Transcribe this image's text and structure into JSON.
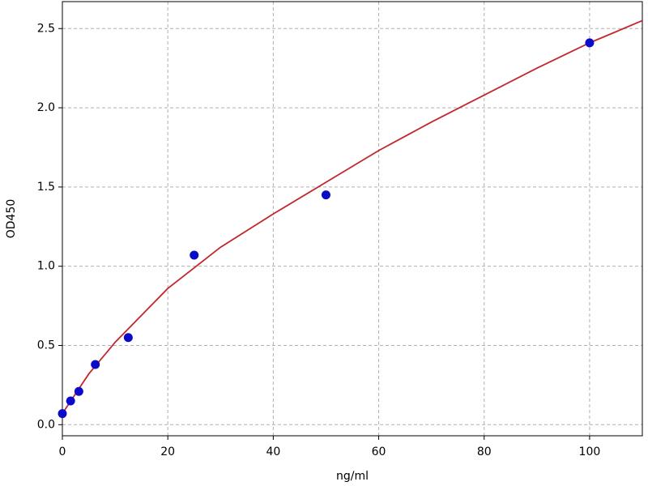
{
  "chart_data": {
    "type": "scatter",
    "xlabel": "ng/ml",
    "ylabel": "OD450",
    "xlim": [
      0,
      110
    ],
    "ylim": [
      -0.07,
      2.67
    ],
    "xticks": [
      0,
      20,
      40,
      60,
      80,
      100
    ],
    "yticks": [
      {
        "value": 0,
        "label": "0.0"
      },
      0.5,
      {
        "value": 1,
        "label": "1.0"
      },
      1.5,
      {
        "value": 2,
        "label": "2.0"
      },
      2.5
    ],
    "grid": true,
    "series": [
      {
        "type": "line",
        "color": "#c0282d",
        "x": [
          0,
          2,
          5,
          10,
          20,
          30,
          40,
          50,
          60,
          70,
          80,
          90,
          100,
          110
        ],
        "values": [
          0.07,
          0.17,
          0.32,
          0.52,
          0.86,
          1.12,
          1.33,
          1.53,
          1.73,
          1.91,
          2.08,
          2.25,
          2.41,
          2.55
        ]
      },
      {
        "type": "scatter",
        "color": "#0a0ac8",
        "x": [
          0,
          1.5625,
          3.125,
          6.25,
          12.5,
          25,
          50,
          100
        ],
        "values": [
          0.07,
          0.15,
          0.21,
          0.38,
          0.55,
          1.07,
          1.45,
          2.41
        ]
      }
    ]
  }
}
